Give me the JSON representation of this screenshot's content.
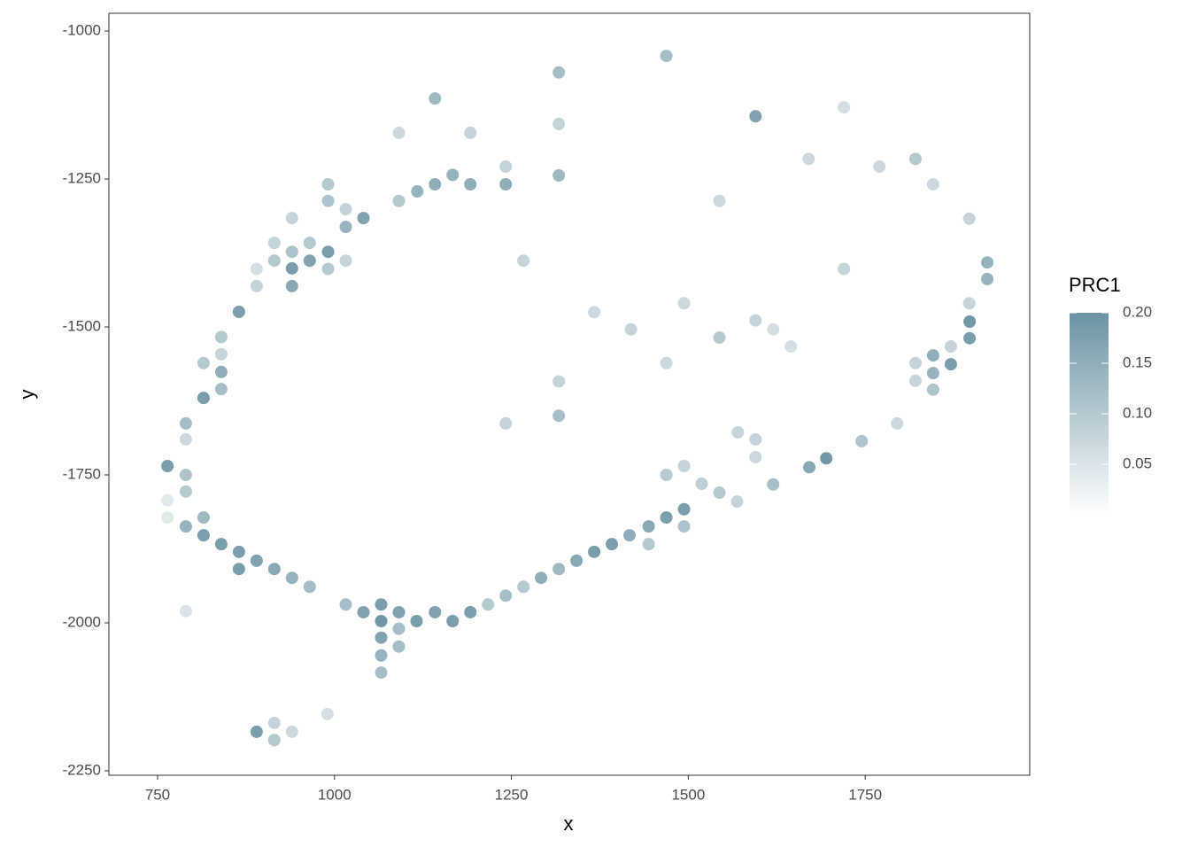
{
  "chart_data": {
    "type": "scatter",
    "x_label": "x",
    "y_label": "y",
    "legend_title": "PRC1",
    "xlim": [
      681.25,
      1982.5
    ],
    "ylim": [
      -2257.5,
      -970
    ],
    "xticks": [
      750,
      1000,
      1250,
      1500,
      1750
    ],
    "yticks": [
      -2250,
      -2000,
      -1750,
      -1500,
      -1250,
      -1000
    ],
    "color_scale": {
      "low": "#ffffff",
      "high": "#6b93a3",
      "limits": [
        0,
        0.2
      ],
      "ticks": [
        0.05,
        {
          "value": 0.1,
          "label": "0.10"
        },
        0.15,
        {
          "value": 0.2,
          "label": "0.20"
        }
      ]
    },
    "x": [
      764,
      865,
      815,
      840,
      940,
      965,
      991,
      1041,
      1016,
      940,
      1117,
      1142,
      1167,
      1192,
      1242,
      1317,
      1595,
      1142,
      1317,
      1469,
      1922.5,
      1922.5,
      1897.5,
      1897.5,
      1871,
      1846,
      1846,
      1846,
      1821,
      1695,
      1671,
      1745,
      1620,
      790,
      815,
      815,
      840,
      865,
      865,
      890,
      915,
      940,
      965,
      1016,
      1041,
      1066,
      1066,
      1091,
      1066,
      1066,
      1066,
      1091,
      1091,
      1116,
      1142,
      1167,
      1192,
      1217,
      1242,
      1267,
      1292,
      1317,
      1342,
      1367,
      1392,
      1417,
      1444,
      1469,
      1494,
      1494,
      1444,
      1519,
      1544,
      1569,
      890,
      915,
      915,
      940,
      990,
      790,
      790,
      790,
      790,
      815,
      840,
      840,
      840,
      890,
      915,
      915,
      940,
      940,
      991,
      991,
      991,
      1016,
      1016,
      965,
      1091,
      890,
      764,
      764,
      790,
      1317,
      1317,
      1242,
      1267,
      1469,
      1494,
      1595,
      1544,
      1469,
      1494,
      1419,
      1367,
      1595,
      1595,
      1570,
      1620,
      1645,
      1720,
      1821,
      1821,
      1871,
      1897,
      1897,
      1846,
      1770,
      1720,
      1544,
      1670,
      1192,
      1317,
      1091,
      1242,
      1795
    ],
    "y": [
      -1735,
      -1474.5,
      -1620,
      -1576,
      -1401,
      -1388,
      -1373,
      -1316,
      -1331,
      -1431,
      -1271,
      -1259,
      -1243,
      -1259,
      -1259,
      -1244,
      -1144,
      -1114,
      -1070,
      -1042,
      -1391,
      -1419,
      -1491,
      -1519,
      -1563,
      -1548,
      -1578,
      -1606,
      -1216,
      -1722,
      -1737,
      -1693,
      -1766,
      -1837,
      -1822,
      -1852,
      -1867,
      -1880,
      -1909,
      -1895,
      -1909,
      -1924,
      -1939,
      -1969,
      -1982,
      -1969,
      -1997,
      -1982,
      -2025,
      -2055,
      -2084,
      -2010,
      -2040,
      -1997,
      -1982,
      -1997,
      -1982,
      -1969,
      -1954,
      -1939,
      -1924,
      -1909,
      -1895,
      -1880,
      -1867,
      -1852,
      -1837,
      -1822,
      -1808,
      -1837,
      -1867,
      -1765,
      -1780,
      -1795,
      -2184,
      -2198,
      -2169,
      -2184,
      -2154,
      -1663,
      -1750,
      -1778,
      -1690,
      -1561,
      -1517,
      -1546,
      -1605,
      -1431,
      -1388,
      -1358,
      -1373,
      -1316,
      -1402,
      -1259,
      -1287,
      -1301,
      -1388,
      -1358,
      -1287,
      -1402,
      -1793,
      -1822,
      -1980,
      -1650,
      -1592,
      -1663,
      -1388,
      -1750,
      -1735,
      -1489,
      -1518,
      -1561,
      -1460,
      -1504,
      -1475,
      -1690,
      -1720,
      -1678,
      -1504,
      -1533,
      -1402,
      -1561,
      -1591,
      -1533,
      -1460,
      -1317,
      -1259,
      -1229,
      -1129,
      -1287,
      -1216,
      -1172,
      -1157,
      -1172,
      -1229,
      -1663
    ],
    "values": [
      0.18,
      0.18,
      0.18,
      0.15,
      0.18,
      0.17,
      0.18,
      0.17,
      0.14,
      0.16,
      0.14,
      0.15,
      0.14,
      0.15,
      0.15,
      0.13,
      0.17,
      0.13,
      0.12,
      0.12,
      0.14,
      0.14,
      0.19,
      0.18,
      0.18,
      0.15,
      0.14,
      0.11,
      0.1,
      0.19,
      0.16,
      0.11,
      0.12,
      0.14,
      0.13,
      0.18,
      0.18,
      0.18,
      0.18,
      0.17,
      0.16,
      0.14,
      0.12,
      0.12,
      0.17,
      0.18,
      0.19,
      0.17,
      0.17,
      0.14,
      0.12,
      0.12,
      0.12,
      0.18,
      0.17,
      0.18,
      0.18,
      0.1,
      0.12,
      0.1,
      0.15,
      0.13,
      0.16,
      0.18,
      0.18,
      0.15,
      0.16,
      0.18,
      0.18,
      0.11,
      0.1,
      0.09,
      0.1,
      0.08,
      0.18,
      0.1,
      0.08,
      0.07,
      0.06,
      0.12,
      0.11,
      0.1,
      0.07,
      0.1,
      0.1,
      0.08,
      0.12,
      0.08,
      0.1,
      0.08,
      0.11,
      0.08,
      0.1,
      0.1,
      0.11,
      0.08,
      0.08,
      0.1,
      0.1,
      0.06,
      0.04,
      0.04,
      0.05,
      0.12,
      0.08,
      0.08,
      0.08,
      0.1,
      0.08,
      0.08,
      0.1,
      0.07,
      0.07,
      0.08,
      0.07,
      0.08,
      0.07,
      0.08,
      0.06,
      0.06,
      0.08,
      0.08,
      0.08,
      0.08,
      0.08,
      0.08,
      0.07,
      0.07,
      0.06,
      0.07,
      0.07,
      0.08,
      0.08,
      0.07,
      0.08,
      0.07
    ]
  }
}
